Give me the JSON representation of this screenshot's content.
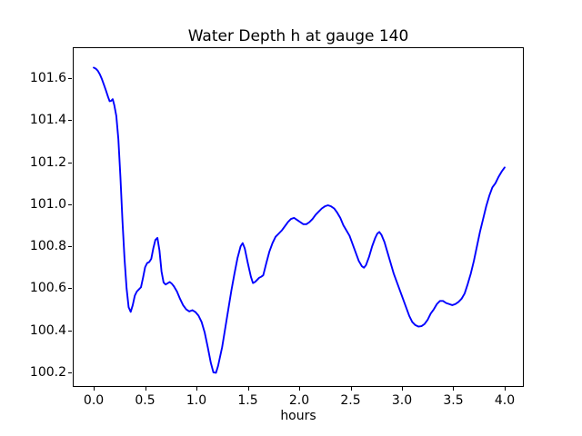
{
  "figure": {
    "background": "#ffffff"
  },
  "chart_data": {
    "type": "line",
    "title": "Water Depth h at gauge 140",
    "xlabel": "hours",
    "ylabel": "",
    "grid": false,
    "legend": "none",
    "frame_color": "#000000",
    "tick_color": "#000000",
    "xlim": [
      -0.204,
      4.186
    ],
    "ylim": [
      100.135,
      101.747
    ],
    "xtick_values": [
      0.0,
      0.5,
      1.0,
      1.5,
      2.0,
      2.5,
      3.0,
      3.5,
      4.0
    ],
    "xtick_labels": [
      "0.0",
      "0.5",
      "1.0",
      "1.5",
      "2.0",
      "2.5",
      "3.0",
      "3.5",
      "4.0"
    ],
    "ytick_values": [
      100.2,
      100.4,
      100.6,
      100.8,
      101.0,
      101.2,
      101.4,
      101.6
    ],
    "ytick_labels": [
      "100.2",
      "100.4",
      "100.6",
      "100.8",
      "101.0",
      "101.2",
      "101.4",
      "101.6"
    ],
    "series": [
      {
        "name": "water-depth-h-gauge-140",
        "color": "#0000ff",
        "line_width": 1.9,
        "points": [
          [
            0.0,
            101.65
          ],
          [
            0.02,
            101.645
          ],
          [
            0.04,
            101.635
          ],
          [
            0.06,
            101.618
          ],
          [
            0.08,
            101.595
          ],
          [
            0.1,
            101.568
          ],
          [
            0.12,
            101.54
          ],
          [
            0.14,
            101.51
          ],
          [
            0.155,
            101.49
          ],
          [
            0.17,
            101.492
          ],
          [
            0.185,
            101.5
          ],
          [
            0.2,
            101.472
          ],
          [
            0.22,
            101.42
          ],
          [
            0.24,
            101.31
          ],
          [
            0.26,
            101.13
          ],
          [
            0.28,
            100.92
          ],
          [
            0.3,
            100.74
          ],
          [
            0.32,
            100.6
          ],
          [
            0.34,
            100.51
          ],
          [
            0.36,
            100.488
          ],
          [
            0.38,
            100.52
          ],
          [
            0.4,
            100.565
          ],
          [
            0.42,
            100.585
          ],
          [
            0.44,
            100.595
          ],
          [
            0.46,
            100.605
          ],
          [
            0.48,
            100.65
          ],
          [
            0.5,
            100.7
          ],
          [
            0.52,
            100.72
          ],
          [
            0.54,
            100.725
          ],
          [
            0.56,
            100.74
          ],
          [
            0.58,
            100.79
          ],
          [
            0.6,
            100.83
          ],
          [
            0.62,
            100.84
          ],
          [
            0.64,
            100.78
          ],
          [
            0.66,
            100.68
          ],
          [
            0.68,
            100.628
          ],
          [
            0.7,
            100.618
          ],
          [
            0.72,
            100.624
          ],
          [
            0.74,
            100.63
          ],
          [
            0.76,
            100.622
          ],
          [
            0.78,
            100.61
          ],
          [
            0.81,
            100.585
          ],
          [
            0.84,
            100.55
          ],
          [
            0.87,
            100.52
          ],
          [
            0.9,
            100.5
          ],
          [
            0.93,
            100.49
          ],
          [
            0.96,
            100.496
          ],
          [
            0.99,
            100.487
          ],
          [
            1.02,
            100.47
          ],
          [
            1.05,
            100.44
          ],
          [
            1.08,
            100.39
          ],
          [
            1.11,
            100.32
          ],
          [
            1.14,
            100.245
          ],
          [
            1.165,
            100.2
          ],
          [
            1.19,
            100.198
          ],
          [
            1.21,
            100.23
          ],
          [
            1.25,
            100.32
          ],
          [
            1.28,
            100.41
          ],
          [
            1.31,
            100.5
          ],
          [
            1.34,
            100.59
          ],
          [
            1.37,
            100.67
          ],
          [
            1.4,
            100.745
          ],
          [
            1.43,
            100.8
          ],
          [
            1.45,
            100.815
          ],
          [
            1.47,
            100.79
          ],
          [
            1.5,
            100.72
          ],
          [
            1.53,
            100.655
          ],
          [
            1.55,
            100.625
          ],
          [
            1.57,
            100.63
          ],
          [
            1.59,
            100.64
          ],
          [
            1.61,
            100.65
          ],
          [
            1.63,
            100.655
          ],
          [
            1.65,
            100.662
          ],
          [
            1.68,
            100.72
          ],
          [
            1.71,
            100.775
          ],
          [
            1.74,
            100.815
          ],
          [
            1.77,
            100.845
          ],
          [
            1.8,
            100.86
          ],
          [
            1.83,
            100.875
          ],
          [
            1.86,
            100.895
          ],
          [
            1.89,
            100.915
          ],
          [
            1.92,
            100.93
          ],
          [
            1.95,
            100.935
          ],
          [
            1.98,
            100.925
          ],
          [
            2.01,
            100.915
          ],
          [
            2.04,
            100.905
          ],
          [
            2.07,
            100.905
          ],
          [
            2.1,
            100.915
          ],
          [
            2.13,
            100.93
          ],
          [
            2.16,
            100.95
          ],
          [
            2.19,
            100.965
          ],
          [
            2.22,
            100.98
          ],
          [
            2.25,
            100.99
          ],
          [
            2.28,
            100.995
          ],
          [
            2.31,
            100.99
          ],
          [
            2.34,
            100.98
          ],
          [
            2.37,
            100.96
          ],
          [
            2.4,
            100.935
          ],
          [
            2.43,
            100.9
          ],
          [
            2.46,
            100.875
          ],
          [
            2.49,
            100.85
          ],
          [
            2.52,
            100.81
          ],
          [
            2.55,
            100.77
          ],
          [
            2.58,
            100.73
          ],
          [
            2.61,
            100.705
          ],
          [
            2.63,
            100.698
          ],
          [
            2.65,
            100.71
          ],
          [
            2.68,
            100.75
          ],
          [
            2.71,
            100.8
          ],
          [
            2.74,
            100.84
          ],
          [
            2.76,
            100.86
          ],
          [
            2.78,
            100.868
          ],
          [
            2.8,
            100.855
          ],
          [
            2.83,
            100.82
          ],
          [
            2.86,
            100.77
          ],
          [
            2.89,
            100.72
          ],
          [
            2.92,
            100.67
          ],
          [
            2.95,
            100.63
          ],
          [
            2.98,
            100.59
          ],
          [
            3.01,
            100.55
          ],
          [
            3.04,
            100.51
          ],
          [
            3.07,
            100.47
          ],
          [
            3.1,
            100.44
          ],
          [
            3.13,
            100.425
          ],
          [
            3.16,
            100.418
          ],
          [
            3.19,
            100.42
          ],
          [
            3.22,
            100.43
          ],
          [
            3.25,
            100.45
          ],
          [
            3.28,
            100.48
          ],
          [
            3.31,
            100.5
          ],
          [
            3.34,
            100.525
          ],
          [
            3.37,
            100.54
          ],
          [
            3.4,
            100.54
          ],
          [
            3.43,
            100.53
          ],
          [
            3.46,
            100.525
          ],
          [
            3.49,
            100.52
          ],
          [
            3.52,
            100.525
          ],
          [
            3.55,
            100.535
          ],
          [
            3.58,
            100.55
          ],
          [
            3.61,
            100.575
          ],
          [
            3.64,
            100.62
          ],
          [
            3.67,
            100.67
          ],
          [
            3.7,
            100.73
          ],
          [
            3.73,
            100.8
          ],
          [
            3.76,
            100.87
          ],
          [
            3.79,
            100.93
          ],
          [
            3.82,
            100.99
          ],
          [
            3.85,
            101.04
          ],
          [
            3.88,
            101.08
          ],
          [
            3.91,
            101.1
          ],
          [
            3.94,
            101.13
          ],
          [
            3.97,
            101.155
          ],
          [
            4.0,
            101.175
          ]
        ]
      }
    ]
  }
}
